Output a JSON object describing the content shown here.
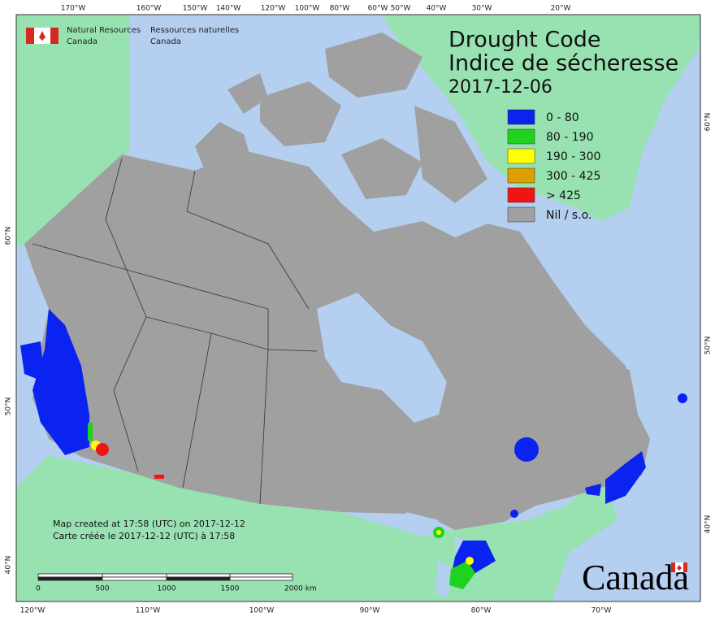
{
  "header": {
    "agency_en": [
      "Natural Resources",
      "Canada"
    ],
    "agency_fr": [
      "Ressources naturelles",
      "Canada"
    ]
  },
  "title": {
    "lines": [
      "Drought Code",
      "Indice de sécheresse",
      "2017-12-06"
    ]
  },
  "legend": {
    "items": [
      {
        "label": "0 - 80",
        "color": "#0a23f0"
      },
      {
        "label": "80 - 190",
        "color": "#1ed21e"
      },
      {
        "label": "190 - 300",
        "color": "#ffff00"
      },
      {
        "label": "300 - 425",
        "color": "#dca000"
      },
      {
        "label": "> 425",
        "color": "#f01414"
      },
      {
        "label": "Nil / s.o.",
        "color": "#a0a0a0"
      }
    ]
  },
  "graticule": {
    "top": [
      "170°W",
      "160°W",
      "150°W",
      "140°W",
      "120°W",
      "100°W",
      "80°W",
      "60°W",
      "50°W",
      "40°W",
      "30°W",
      "20°W"
    ],
    "bottom": [
      "120°W",
      "110°W",
      "100°W",
      "90°W",
      "80°W",
      "70°W"
    ],
    "left": [
      "60°N",
      "50°N",
      "40°N"
    ],
    "right": [
      "60°N",
      "50°N",
      "40°N"
    ]
  },
  "notes": [
    "Map created at 17:58 (UTC) on 2017-12-12",
    "Carte créée le 2017-12-12 (UTC) à 17:58"
  ],
  "scale_bar": {
    "labels": [
      "0",
      "500",
      "1000",
      "1500",
      "2000  km"
    ]
  },
  "wordmark": "Canada"
}
